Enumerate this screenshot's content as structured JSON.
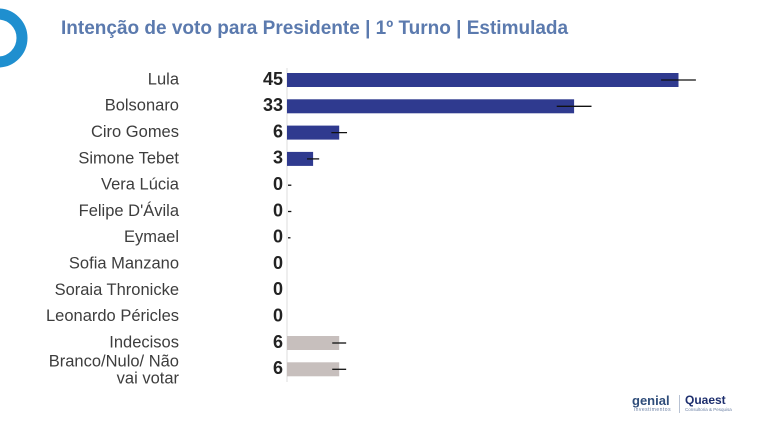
{
  "chart_data": {
    "type": "bar",
    "orientation": "horizontal",
    "title": "Intenção de voto para Presidente | 1º Turno | Estimulada",
    "categories": [
      "Lula",
      "Bolsonaro",
      "Ciro Gomes",
      "Simone Tebet",
      "Vera Lúcia",
      "Felipe D'Ávila",
      "Eymael",
      "Sofia Manzano",
      "Soraia Thronicke",
      "Leonardo Péricles",
      "Indecisos",
      "Branco/Nulo/ Não vai votar"
    ],
    "values": [
      45,
      33,
      6,
      3,
      0,
      0,
      0,
      0,
      0,
      0,
      6,
      6
    ],
    "value_labels": [
      "45",
      "33",
      "6",
      "3",
      "0",
      "0",
      "0",
      "0",
      "0",
      "0",
      "6",
      "6"
    ],
    "error_margin": [
      2,
      2,
      0.9,
      0.7,
      0.5,
      0.5,
      0.4,
      0.1,
      0.1,
      0.1,
      0.8,
      0.8
    ],
    "xlim": [
      0,
      50
    ],
    "grid": false,
    "colors": {
      "candidate": "#2f3a8f",
      "other": "#c7bfbd",
      "error_bar": "#111111",
      "title": "#5b7aae",
      "corner_logo": "#1f8fcf"
    }
  },
  "branding": {
    "genial": "genial",
    "genial_sub": "investimentos",
    "quaest": "Quaest",
    "quaest_sub": "Consultoria & Pesquisa"
  }
}
